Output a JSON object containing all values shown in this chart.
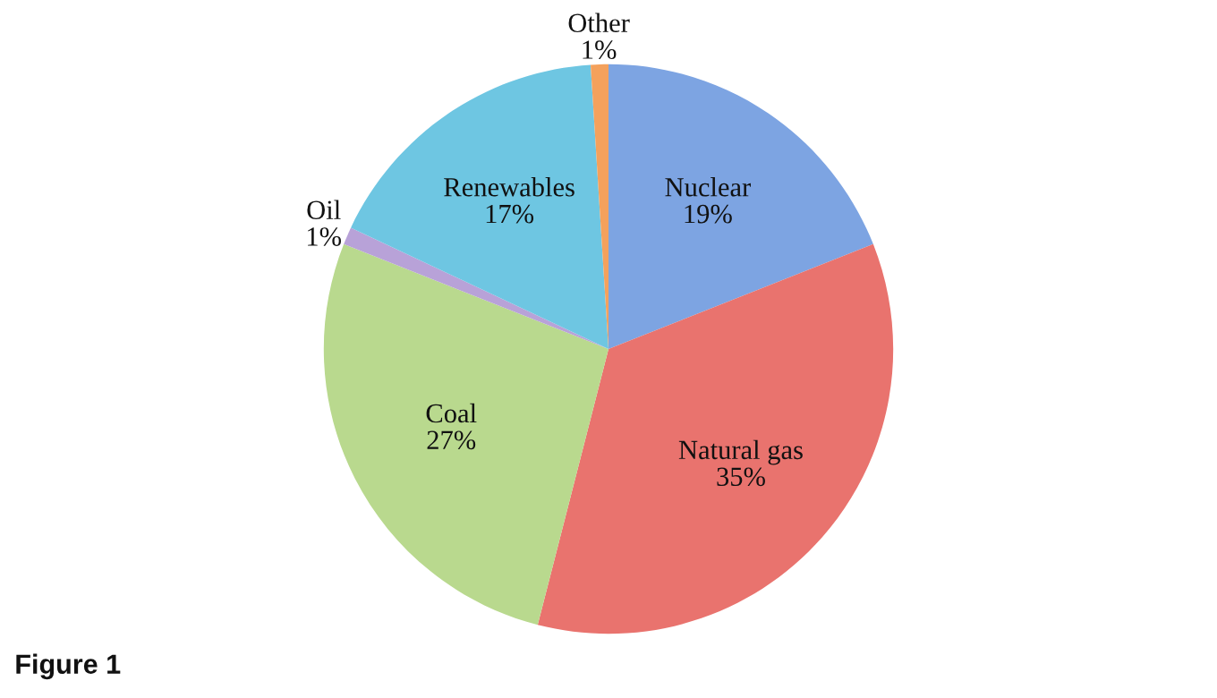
{
  "chart_data": {
    "type": "pie",
    "categories": [
      "Nuclear",
      "Natural gas",
      "Coal",
      "Oil",
      "Renewables",
      "Other"
    ],
    "values": [
      19,
      35,
      27,
      1,
      17,
      1
    ],
    "value_labels": [
      "19%",
      "35%",
      "27%",
      "1%",
      "17%",
      "1%"
    ],
    "colors": [
      "#7da4e2",
      "#e9736e",
      "#b9d98e",
      "#b8a2d8",
      "#6ec6e2",
      "#f4a15c"
    ],
    "annotations": [
      "Figure 1"
    ],
    "legend": false
  }
}
